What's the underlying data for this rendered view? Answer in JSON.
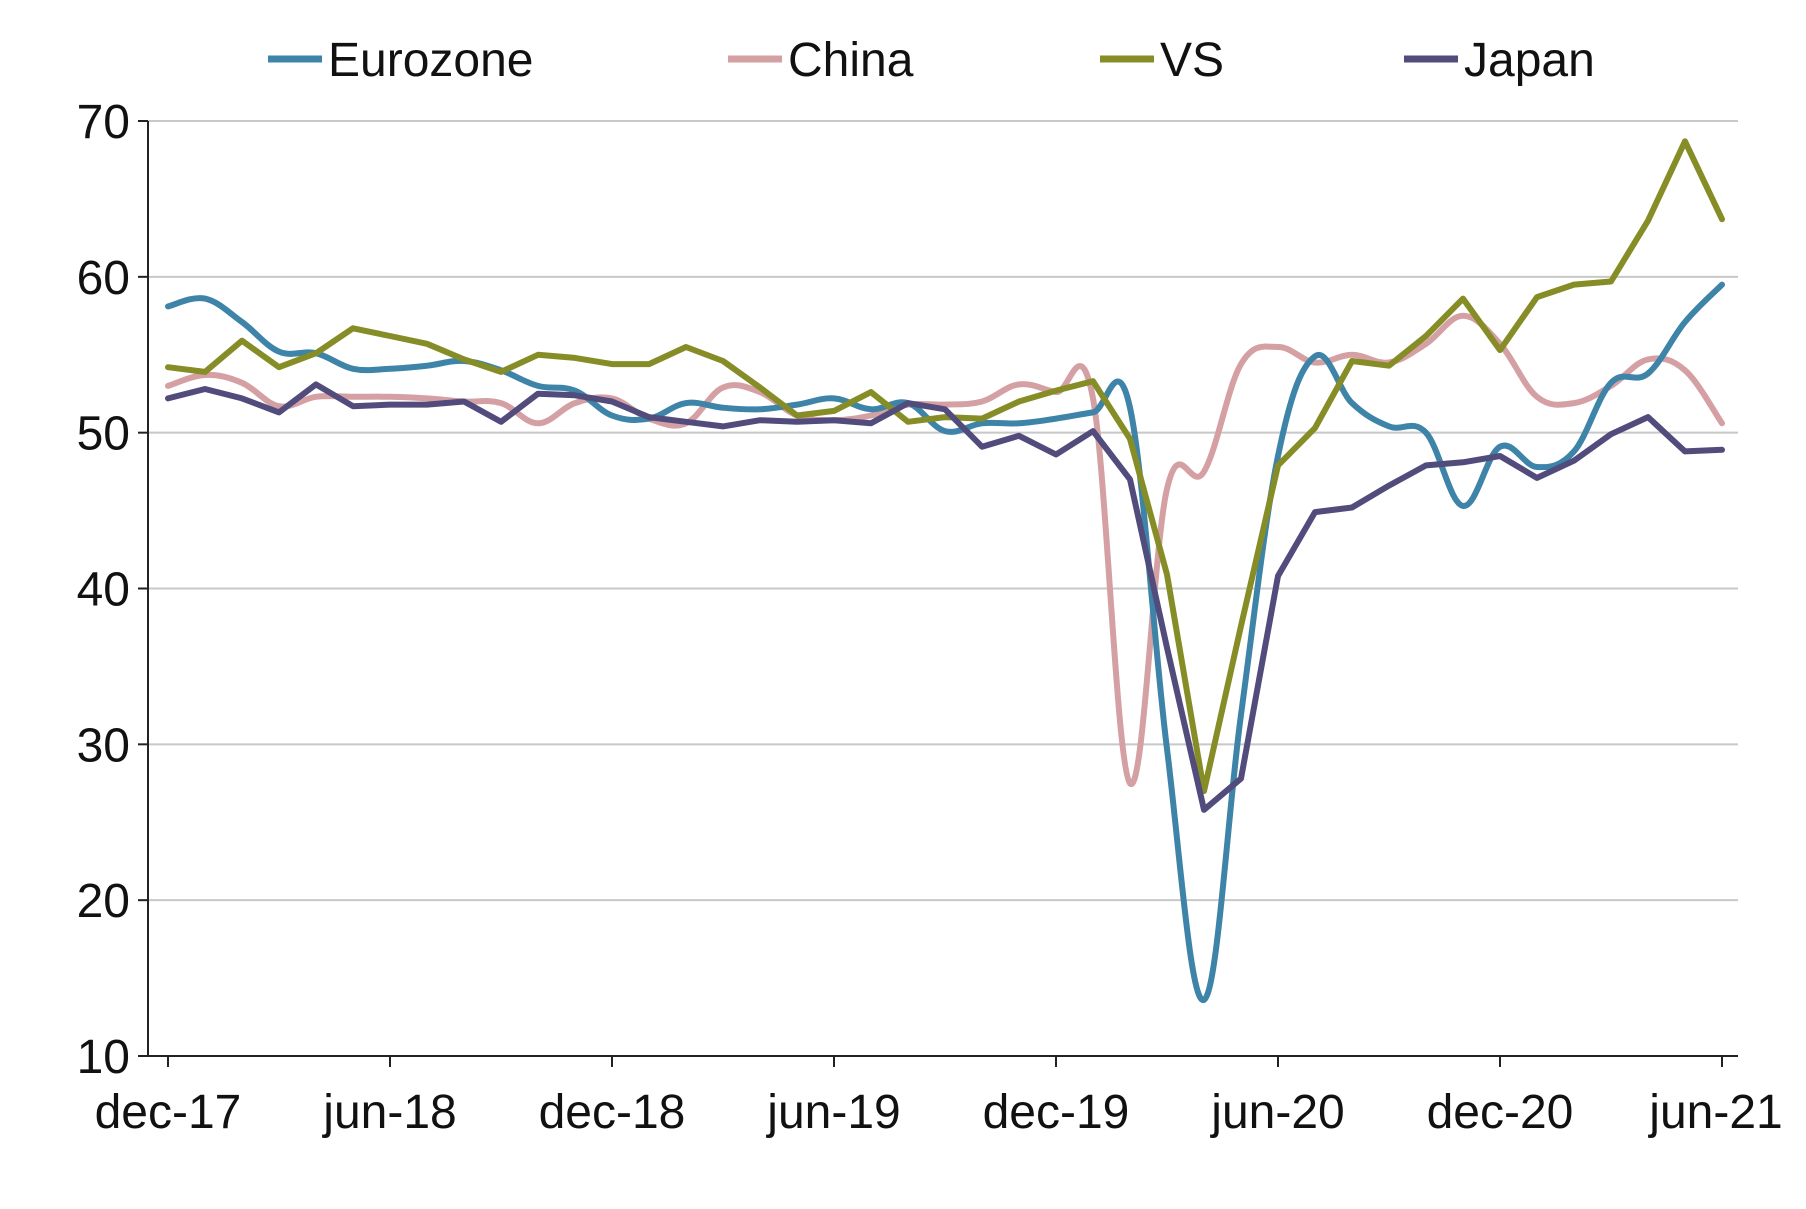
{
  "chart_data": {
    "type": "line",
    "title": "",
    "xlabel": "",
    "ylabel": "",
    "ylim": [
      10,
      70
    ],
    "yticks": [
      10,
      20,
      30,
      40,
      50,
      60,
      70
    ],
    "x_start": "2017-12",
    "x_tick_labels": [
      "dec-17",
      "jun-18",
      "dec-18",
      "jun-19",
      "dec-19",
      "jun-20",
      "dec-20",
      "jun-21"
    ],
    "grid": "horizontal",
    "legend_position": "top",
    "x": [
      "2017-12",
      "2018-01",
      "2018-02",
      "2018-03",
      "2018-04",
      "2018-05",
      "2018-06",
      "2018-07",
      "2018-08",
      "2018-09",
      "2018-10",
      "2018-11",
      "2018-12",
      "2019-01",
      "2019-02",
      "2019-03",
      "2019-04",
      "2019-05",
      "2019-06",
      "2019-07",
      "2019-08",
      "2019-09",
      "2019-10",
      "2019-11",
      "2019-12",
      "2020-01",
      "2020-02",
      "2020-03",
      "2020-04",
      "2020-05",
      "2020-06",
      "2020-07",
      "2020-08",
      "2020-09",
      "2020-10",
      "2020-11",
      "2020-12",
      "2021-01",
      "2021-02",
      "2021-03",
      "2021-04",
      "2021-05",
      "2021-06"
    ],
    "series": [
      {
        "name": "Eurozone",
        "color": "#3e84a8",
        "values": [
          58.1,
          58.6,
          57.1,
          55.2,
          55.1,
          54.1,
          54.1,
          54.3,
          54.6,
          54.0,
          53.0,
          52.7,
          51.1,
          50.9,
          51.9,
          51.6,
          51.5,
          51.8,
          52.2,
          51.5,
          51.9,
          50.1,
          50.6,
          50.6,
          50.9,
          51.3,
          51.6,
          29.7,
          13.6,
          31.9,
          48.5,
          54.9,
          51.9,
          50.4,
          50.0,
          45.3,
          49.1,
          47.8,
          48.8,
          53.2,
          53.8,
          57.1,
          59.5
        ]
      },
      {
        "name": "China",
        "color": "#d4a0a3",
        "values": [
          53.0,
          53.7,
          53.2,
          51.7,
          52.3,
          52.3,
          52.3,
          52.2,
          52.0,
          51.9,
          50.6,
          51.9,
          52.2,
          50.9,
          50.6,
          52.9,
          52.6,
          51.1,
          50.8,
          51.1,
          51.8,
          51.8,
          52.0,
          53.1,
          52.6,
          52.2,
          27.5,
          46.4,
          47.5,
          54.4,
          55.5,
          54.5,
          55.0,
          54.5,
          55.7,
          57.5,
          55.7,
          52.3,
          51.9,
          53.0,
          54.7,
          54.0,
          50.6
        ]
      },
      {
        "name": "VS",
        "color": "#868d27",
        "values": [
          54.2,
          53.9,
          55.9,
          54.2,
          55.1,
          56.7,
          56.2,
          55.7,
          54.7,
          53.9,
          55.0,
          54.8,
          54.4,
          54.4,
          55.5,
          54.6,
          52.9,
          51.1,
          51.4,
          52.6,
          50.7,
          51.0,
          50.9,
          52.0,
          52.7,
          53.3,
          49.6,
          40.9,
          27.0,
          37.6,
          47.9,
          50.3,
          54.6,
          54.3,
          56.2,
          58.6,
          55.3,
          58.7,
          59.5,
          59.7,
          63.6,
          68.7,
          63.7
        ]
      },
      {
        "name": "Japan",
        "color": "#514c7c",
        "values": [
          52.2,
          52.8,
          52.2,
          51.3,
          53.1,
          51.7,
          51.8,
          51.8,
          52.0,
          50.7,
          52.5,
          52.4,
          52.0,
          51.0,
          50.7,
          50.4,
          50.8,
          50.7,
          50.8,
          50.6,
          51.9,
          51.5,
          49.1,
          49.8,
          48.6,
          50.1,
          47.0,
          36.2,
          25.8,
          27.8,
          40.8,
          44.9,
          45.2,
          46.6,
          47.9,
          48.1,
          48.5,
          47.1,
          48.2,
          49.9,
          51.0,
          48.8,
          48.9
        ]
      }
    ]
  }
}
